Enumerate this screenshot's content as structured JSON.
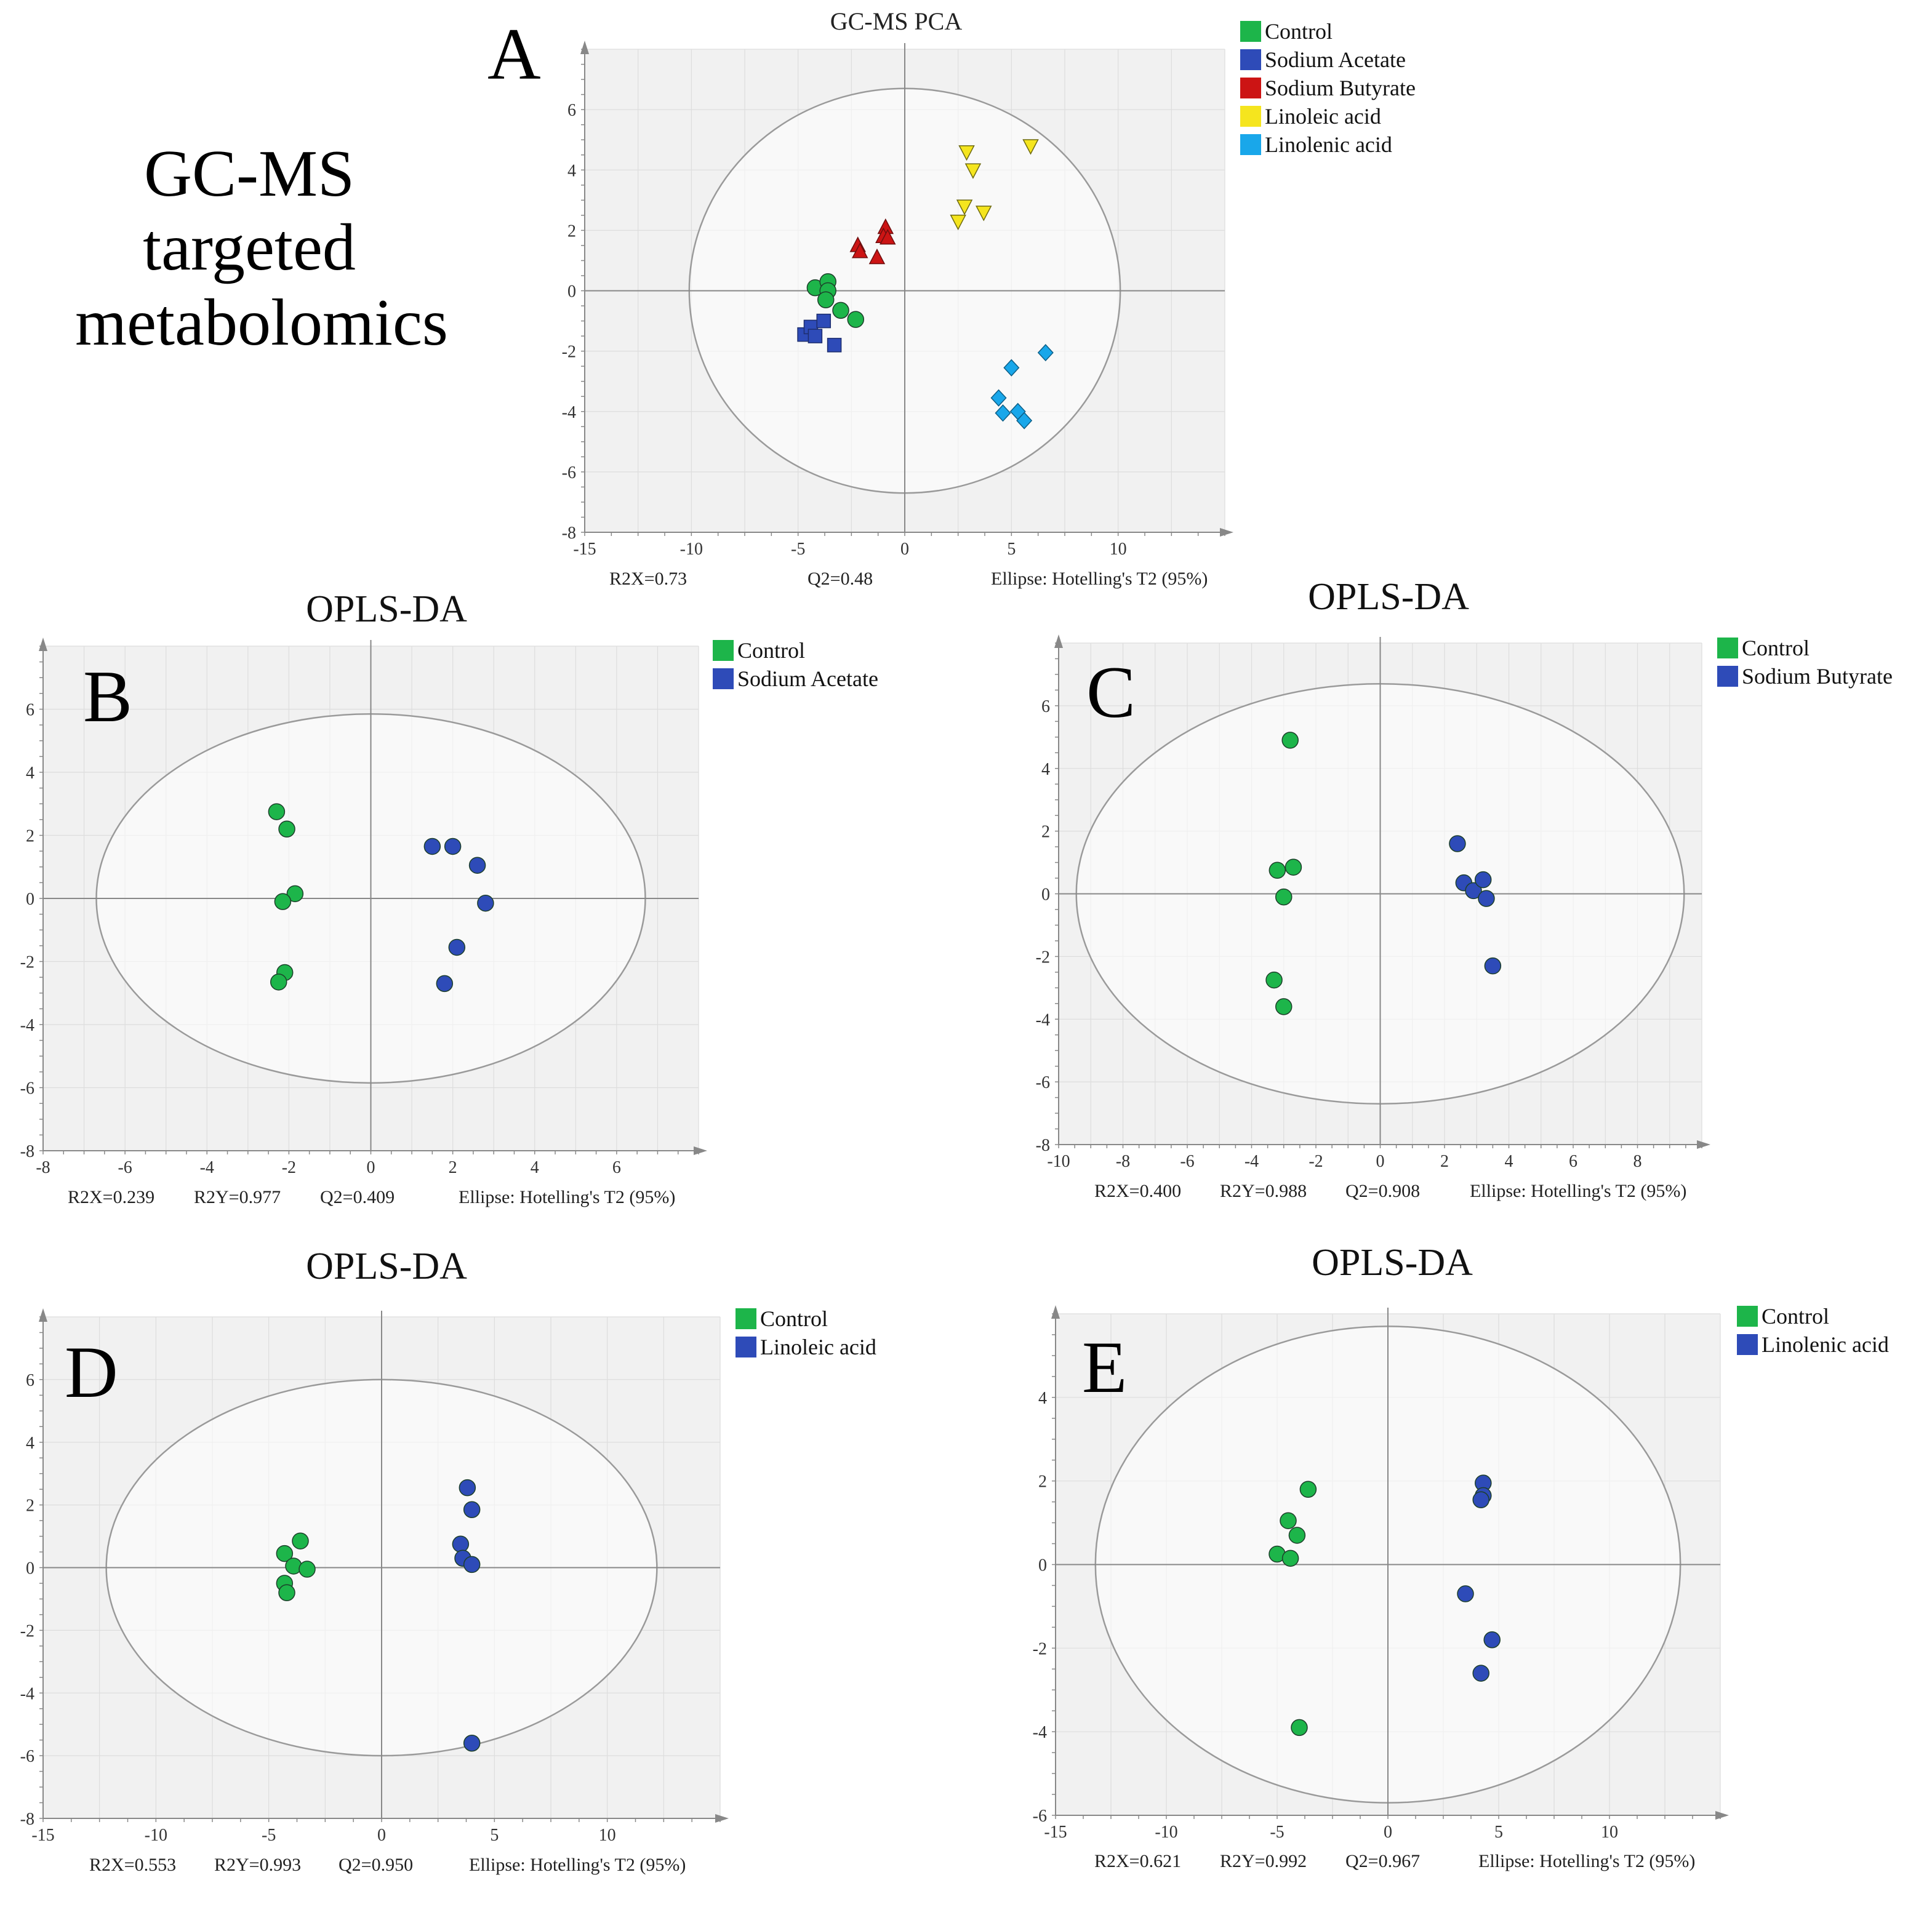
{
  "heading": {
    "line1": "GC-MS",
    "line2": "targeted",
    "line3": "metabolomics"
  },
  "colors": {
    "control": "#1db54a",
    "acetate": "#2e4bb8",
    "butyrate": "#cc1414",
    "linoleic": "#f5e51e",
    "linolenic": "#19a7ea",
    "plot_bg": "#f1f1f1",
    "grid": "#dddddd",
    "axis": "#888888",
    "ellipse": "#9a9a9a"
  },
  "chart_data": [
    {
      "id": "A",
      "type": "scatter",
      "title": "GC-MS  PCA",
      "panel_label": "A",
      "xlim": [
        -15,
        15
      ],
      "ylim": [
        -8,
        8
      ],
      "xticks": [
        -15,
        -10,
        -5,
        0,
        5,
        10
      ],
      "yticks": [
        -8,
        -6,
        -4,
        -2,
        0,
        2,
        4,
        6
      ],
      "ellipse": {
        "rx": 10.1,
        "ry": 6.7
      },
      "stats": {
        "r2x": "R2X=0.73",
        "q2": "Q2=0.48",
        "ellipse": "Ellipse: Hotelling's T2 (95%)"
      },
      "legend": [
        "Control",
        "Sodium Acetate",
        "Sodium Butyrate",
        "Linoleic acid",
        "Linolenic acid"
      ],
      "series": [
        {
          "name": "Control",
          "color": "#1db54a",
          "marker": "circle",
          "points": [
            [
              -4.2,
              0.1
            ],
            [
              -3.6,
              0.3
            ],
            [
              -3.6,
              0.0
            ],
            [
              -3.7,
              -0.3
            ],
            [
              -3.0,
              -0.65
            ],
            [
              -2.3,
              -0.95
            ]
          ]
        },
        {
          "name": "Sodium Acetate",
          "color": "#2e4bb8",
          "marker": "square",
          "points": [
            [
              -4.7,
              -1.45
            ],
            [
              -4.4,
              -1.2
            ],
            [
              -4.2,
              -1.5
            ],
            [
              -3.8,
              -1.0
            ],
            [
              -3.3,
              -1.8
            ]
          ]
        },
        {
          "name": "Sodium Butyrate",
          "color": "#cc1414",
          "marker": "triangle-up",
          "points": [
            [
              -2.2,
              1.5
            ],
            [
              -2.1,
              1.3
            ],
            [
              -1.3,
              1.1
            ],
            [
              -0.9,
              2.1
            ],
            [
              -1.0,
              1.8
            ],
            [
              -0.8,
              1.75
            ]
          ]
        },
        {
          "name": "Linoleic acid",
          "color": "#f5e51e",
          "marker": "triangle-down",
          "points": [
            [
              2.9,
              4.6
            ],
            [
              5.9,
              4.8
            ],
            [
              3.2,
              4.0
            ],
            [
              2.8,
              2.8
            ],
            [
              3.7,
              2.6
            ],
            [
              2.5,
              2.3
            ]
          ]
        },
        {
          "name": "Linolenic acid",
          "color": "#19a7ea",
          "marker": "diamond",
          "points": [
            [
              6.6,
              -2.05
            ],
            [
              5.0,
              -2.55
            ],
            [
              4.4,
              -3.55
            ],
            [
              4.6,
              -4.05
            ],
            [
              5.3,
              -4.0
            ],
            [
              5.6,
              -4.3
            ]
          ]
        }
      ]
    },
    {
      "id": "B",
      "type": "scatter",
      "title": "OPLS-DA",
      "panel_label": "B",
      "xlim": [
        -8,
        8
      ],
      "ylim": [
        -8,
        8
      ],
      "xticks": [
        -8,
        -6,
        -4,
        -2,
        0,
        2,
        4,
        6
      ],
      "yticks": [
        -8,
        -6,
        -4,
        -2,
        0,
        2,
        4,
        6
      ],
      "ellipse": {
        "rx": 6.7,
        "ry": 5.85
      },
      "stats": {
        "r2x": "R2X=0.239",
        "r2y": "R2Y=0.977",
        "q2": "Q2=0.409",
        "ellipse": "Ellipse: Hotelling's T2 (95%)"
      },
      "legend": [
        "Control",
        "Sodium Acetate"
      ],
      "series": [
        {
          "name": "Control",
          "color": "#1db54a",
          "marker": "circle",
          "points": [
            [
              -2.3,
              2.75
            ],
            [
              -2.05,
              2.2
            ],
            [
              -1.85,
              0.15
            ],
            [
              -2.15,
              -0.1
            ],
            [
              -2.1,
              -2.35
            ],
            [
              -2.25,
              -2.65
            ]
          ]
        },
        {
          "name": "Sodium Acetate",
          "color": "#2e4bb8",
          "marker": "circle",
          "points": [
            [
              1.5,
              1.65
            ],
            [
              2.0,
              1.65
            ],
            [
              2.6,
              1.05
            ],
            [
              2.8,
              -0.15
            ],
            [
              2.1,
              -1.55
            ],
            [
              1.8,
              -2.7
            ]
          ]
        }
      ]
    },
    {
      "id": "C",
      "type": "scatter",
      "title": "OPLS-DA",
      "panel_label": "C",
      "xlim": [
        -10,
        10
      ],
      "ylim": [
        -8,
        8
      ],
      "xticks": [
        -10,
        -8,
        -6,
        -4,
        -2,
        0,
        2,
        4,
        6,
        8
      ],
      "yticks": [
        -8,
        -6,
        -4,
        -2,
        0,
        2,
        4,
        6
      ],
      "ellipse": {
        "rx": 9.45,
        "ry": 6.7
      },
      "stats": {
        "r2x": "R2X=0.400",
        "r2y": "R2Y=0.988",
        "q2": "Q2=0.908",
        "ellipse": "Ellipse: Hotelling's T2 (95%)"
      },
      "legend": [
        "Control",
        "Sodium Butyrate"
      ],
      "series": [
        {
          "name": "Control",
          "color": "#1db54a",
          "marker": "circle",
          "points": [
            [
              -2.8,
              4.9
            ],
            [
              -2.7,
              0.85
            ],
            [
              -3.2,
              0.75
            ],
            [
              -3.0,
              -0.1
            ],
            [
              -3.3,
              -2.75
            ],
            [
              -3.0,
              -3.6
            ]
          ]
        },
        {
          "name": "Sodium Butyrate",
          "color": "#2e4bb8",
          "marker": "circle",
          "points": [
            [
              2.4,
              1.6
            ],
            [
              2.6,
              0.35
            ],
            [
              2.9,
              0.1
            ],
            [
              3.2,
              0.45
            ],
            [
              3.3,
              -0.15
            ],
            [
              3.5,
              -2.3
            ]
          ]
        }
      ]
    },
    {
      "id": "D",
      "type": "scatter",
      "title": "OPLS-DA",
      "panel_label": "D",
      "xlim": [
        -15,
        15
      ],
      "ylim": [
        -8,
        8
      ],
      "xticks": [
        -15,
        -10,
        -5,
        0,
        5,
        10
      ],
      "yticks": [
        -8,
        -6,
        -4,
        -2,
        0,
        2,
        4,
        6
      ],
      "ellipse": {
        "rx": 12.2,
        "ry": 6.0
      },
      "stats": {
        "r2x": "R2X=0.553",
        "r2y": "R2Y=0.993",
        "q2": "Q2=0.950",
        "ellipse": "Ellipse: Hotelling's T2 (95%)"
      },
      "legend": [
        "Control",
        "Linoleic acid"
      ],
      "series": [
        {
          "name": "Control",
          "color": "#1db54a",
          "marker": "circle",
          "points": [
            [
              -3.6,
              0.85
            ],
            [
              -4.3,
              0.45
            ],
            [
              -3.9,
              0.05
            ],
            [
              -3.3,
              -0.05
            ],
            [
              -4.3,
              -0.5
            ],
            [
              -4.2,
              -0.8
            ]
          ]
        },
        {
          "name": "Linoleic acid",
          "color": "#2e4bb8",
          "marker": "circle",
          "points": [
            [
              3.8,
              2.55
            ],
            [
              4.0,
              1.85
            ],
            [
              3.5,
              0.75
            ],
            [
              3.6,
              0.3
            ],
            [
              4.0,
              0.1
            ],
            [
              4.0,
              -5.6
            ]
          ]
        }
      ]
    },
    {
      "id": "E",
      "type": "scatter",
      "title": "OPLS-DA",
      "panel_label": "E",
      "xlim": [
        -15,
        15
      ],
      "ylim": [
        -6,
        6
      ],
      "xticks": [
        -15,
        -10,
        -5,
        0,
        5,
        10
      ],
      "yticks": [
        -6,
        -4,
        -2,
        0,
        2,
        4
      ],
      "ellipse": {
        "rx": 13.2,
        "ry": 5.7
      },
      "stats": {
        "r2x": "R2X=0.621",
        "r2y": "R2Y=0.992",
        "q2": "Q2=0.967",
        "ellipse": "Ellipse: Hotelling's T2 (95%)"
      },
      "legend": [
        "Control",
        "Linolenic acid"
      ],
      "series": [
        {
          "name": "Control",
          "color": "#1db54a",
          "marker": "circle",
          "points": [
            [
              -3.6,
              1.8
            ],
            [
              -4.5,
              1.05
            ],
            [
              -4.1,
              0.7
            ],
            [
              -5.0,
              0.25
            ],
            [
              -4.4,
              0.15
            ],
            [
              -4.0,
              -3.9
            ]
          ]
        },
        {
          "name": "Linolenic acid",
          "color": "#2e4bb8",
          "marker": "circle",
          "points": [
            [
              4.3,
              1.95
            ],
            [
              4.3,
              1.65
            ],
            [
              4.2,
              1.55
            ],
            [
              3.5,
              -0.7
            ],
            [
              4.7,
              -1.8
            ],
            [
              4.2,
              -2.6
            ]
          ]
        }
      ]
    }
  ]
}
